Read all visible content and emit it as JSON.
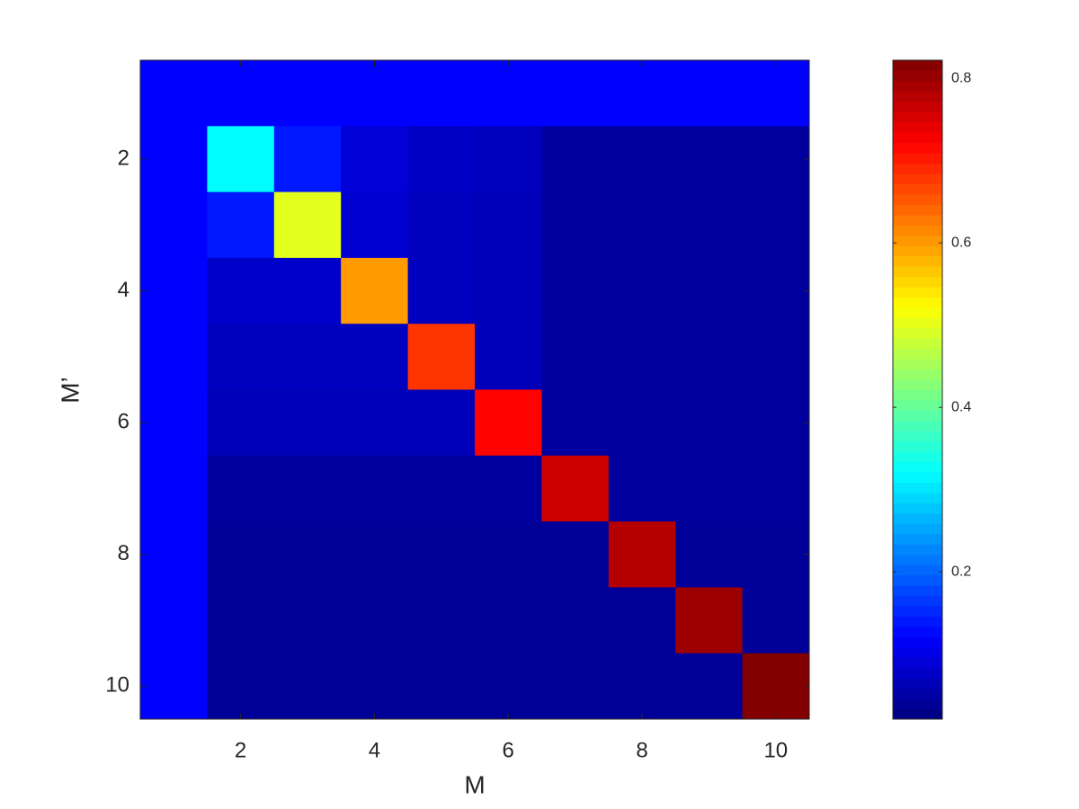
{
  "chart_data": {
    "type": "heatmap",
    "xlabel": "M",
    "ylabel": "M’",
    "colormap": "jet",
    "xlim": [
      0.5,
      10.5
    ],
    "ylim": [
      0.5,
      10.5
    ],
    "y_reversed": true,
    "xticks": [
      2,
      4,
      6,
      8,
      10
    ],
    "yticks": [
      2,
      4,
      6,
      8,
      10
    ],
    "clim": [
      0.021,
      0.822
    ],
    "cticks": [
      0.2,
      0.4,
      0.6,
      0.8
    ],
    "z": [
      [
        0.12,
        0.12,
        0.12,
        0.12,
        0.12,
        0.12,
        0.12,
        0.12,
        0.12,
        0.12
      ],
      [
        0.12,
        0.32,
        0.14,
        0.09,
        0.075,
        0.07,
        0.045,
        0.045,
        0.045,
        0.045
      ],
      [
        0.12,
        0.14,
        0.5,
        0.085,
        0.07,
        0.065,
        0.045,
        0.045,
        0.045,
        0.045
      ],
      [
        0.12,
        0.08,
        0.08,
        0.6,
        0.07,
        0.065,
        0.045,
        0.045,
        0.045,
        0.045
      ],
      [
        0.12,
        0.07,
        0.07,
        0.07,
        0.68,
        0.065,
        0.045,
        0.045,
        0.045,
        0.045
      ],
      [
        0.12,
        0.065,
        0.065,
        0.065,
        0.065,
        0.72,
        0.045,
        0.045,
        0.045,
        0.045
      ],
      [
        0.12,
        0.045,
        0.045,
        0.045,
        0.045,
        0.045,
        0.76,
        0.045,
        0.045,
        0.045
      ],
      [
        0.12,
        0.04,
        0.04,
        0.04,
        0.04,
        0.04,
        0.04,
        0.78,
        0.04,
        0.04
      ],
      [
        0.12,
        0.04,
        0.04,
        0.04,
        0.04,
        0.04,
        0.04,
        0.04,
        0.8,
        0.04
      ],
      [
        0.12,
        0.04,
        0.04,
        0.04,
        0.04,
        0.04,
        0.04,
        0.04,
        0.04,
        0.82
      ]
    ]
  }
}
